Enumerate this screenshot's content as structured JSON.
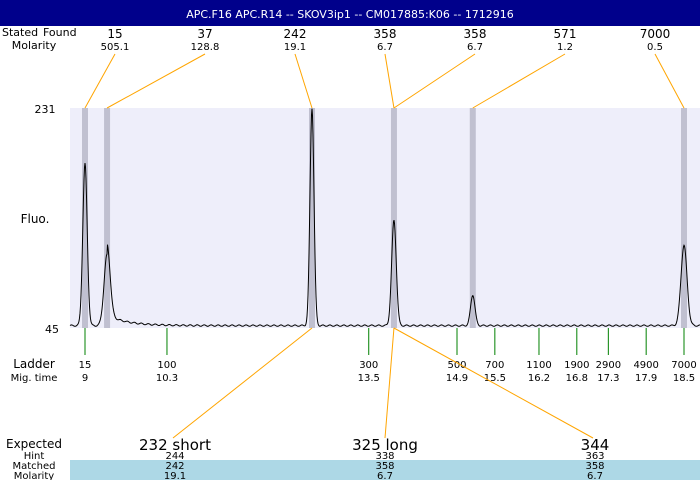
{
  "header": {
    "title": "APC.F16  APC.R14 -- SKOV3ip1 -- CM017885:K06 -- 1712916",
    "bg": "#00008b"
  },
  "row_labels": {
    "stated": "Stated",
    "found": "Found",
    "molarity": "Molarity",
    "fluo": "Fluo.",
    "ladder": "Ladder",
    "mig_time": "Mig. time",
    "expected": "Expected",
    "hint": "Hint",
    "matched": "Matched",
    "molarity_bottom": "Molarity"
  },
  "found_peaks": [
    {
      "size": "15",
      "molarity": "505.1"
    },
    {
      "size": "37",
      "molarity": "128.8"
    },
    {
      "size": "242",
      "molarity": "19.1"
    },
    {
      "size": "358",
      "molarity": "6.7"
    },
    {
      "size": "358",
      "molarity": "6.7"
    },
    {
      "size": "571",
      "molarity": "1.2"
    },
    {
      "size": "7000",
      "molarity": "0.5"
    }
  ],
  "expected": [
    {
      "label": "232 short",
      "hint": "244",
      "matched": "242",
      "molarity": "19.1"
    },
    {
      "label": "325 long",
      "hint": "338",
      "matched": "358",
      "molarity": "6.7"
    },
    {
      "label": "344",
      "hint": "363",
      "matched": "358",
      "molarity": "6.7"
    }
  ],
  "colors": {
    "plot_bg": "#eeeefa",
    "band": "#c0c0d0",
    "leader": "#ffa500",
    "ladder_tick": "#008000",
    "matched_bg": "#add8e6"
  },
  "chart_data": {
    "type": "line",
    "ylabel": "Fluo.",
    "ylim": [
      45,
      231
    ],
    "y_ticks": [
      "231",
      "45"
    ],
    "xlabel": "Mig. time",
    "ladder": [
      {
        "size": "15",
        "mig_time": "9"
      },
      {
        "size": "100",
        "mig_time": "10.3"
      },
      {
        "size": "300",
        "mig_time": "13.5"
      },
      {
        "size": "500",
        "mig_time": "14.9"
      },
      {
        "size": "700",
        "mig_time": "15.5"
      },
      {
        "size": "1100",
        "mig_time": "16.2"
      },
      {
        "size": "1900",
        "mig_time": "16.8"
      },
      {
        "size": "2900",
        "mig_time": "17.3"
      },
      {
        "size": "4900",
        "mig_time": "17.9"
      },
      {
        "size": "7000",
        "mig_time": "18.5"
      }
    ],
    "baseline": 47,
    "peaks": [
      {
        "mig_time": 9.0,
        "fluo": 184
      },
      {
        "mig_time": 9.35,
        "fluo": 107
      },
      {
        "mig_time": 12.6,
        "fluo": 231
      },
      {
        "mig_time": 13.9,
        "fluo": 136
      },
      {
        "mig_time": 15.15,
        "fluo": 73
      },
      {
        "mig_time": 18.5,
        "fluo": 115
      }
    ]
  }
}
